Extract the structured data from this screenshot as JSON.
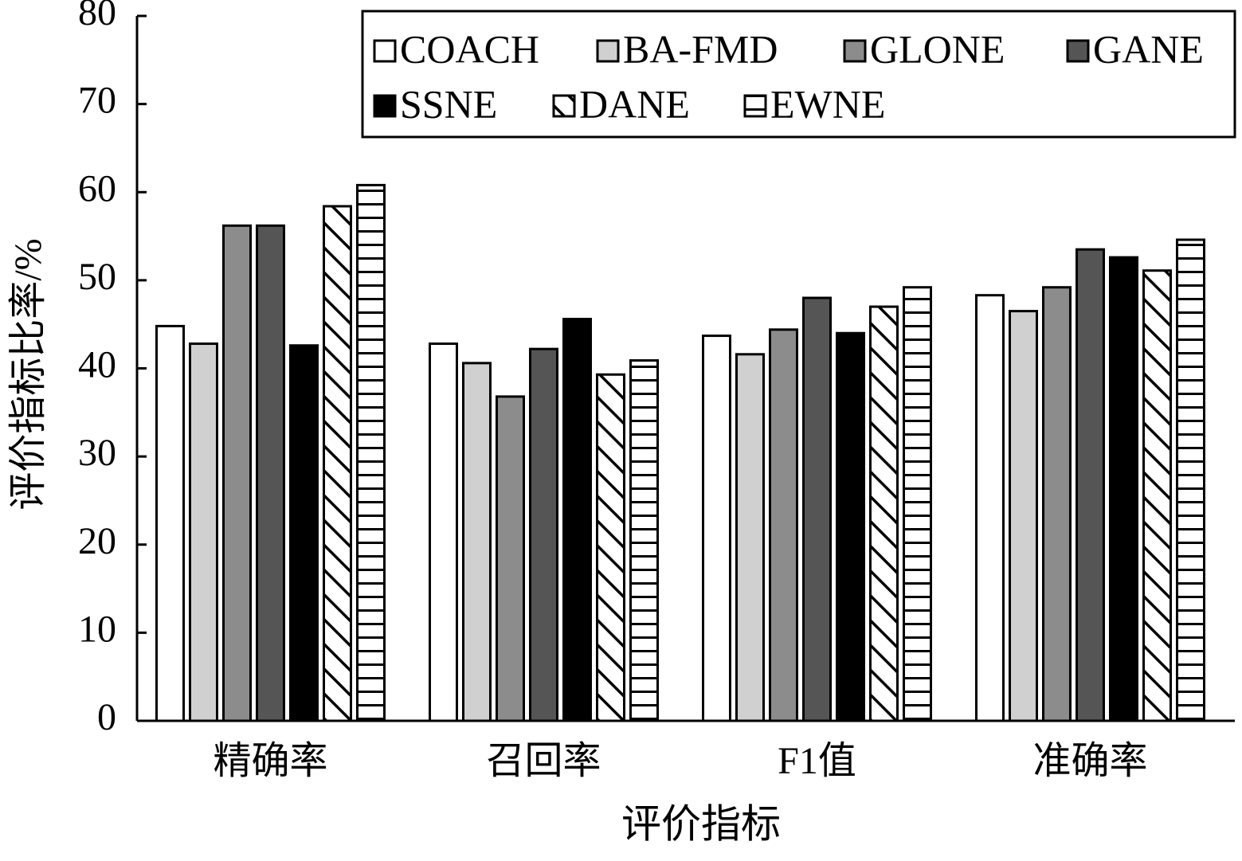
{
  "chart_data": {
    "type": "bar",
    "x_label": "评价指标",
    "y_label": "评价指标比率/%",
    "categories": [
      "精确率",
      "召回率",
      "F1值",
      "准确率"
    ],
    "series": [
      {
        "name": "COACH",
        "color": "#ffffff",
        "values": [
          44.8,
          42.8,
          43.7,
          48.3
        ]
      },
      {
        "name": "BA-FMD",
        "color": "#d0d0d0",
        "values": [
          42.8,
          40.6,
          41.6,
          46.5
        ]
      },
      {
        "name": "GLONE",
        "color": "#8c8c8c",
        "values": [
          56.2,
          36.8,
          44.4,
          49.2
        ]
      },
      {
        "name": "GANE",
        "color": "#555555",
        "values": [
          56.2,
          42.2,
          48.0,
          53.5
        ]
      },
      {
        "name": "SSNE",
        "color": "#000000",
        "values": [
          42.6,
          45.6,
          44.0,
          52.6
        ]
      },
      {
        "name": "DANE",
        "color": "#ffffff",
        "hatch": "diagonal",
        "values": [
          58.4,
          39.3,
          47.0,
          51.1
        ]
      },
      {
        "name": "EWNE",
        "color": "#ffffff",
        "hatch": "horizontal",
        "values": [
          60.8,
          40.9,
          49.2,
          54.6
        ]
      }
    ],
    "ylim": [
      0,
      80
    ],
    "yticks": [
      0,
      10,
      20,
      30,
      40,
      50,
      60,
      70,
      80
    ],
    "legend": "top-right",
    "grid": false
  }
}
